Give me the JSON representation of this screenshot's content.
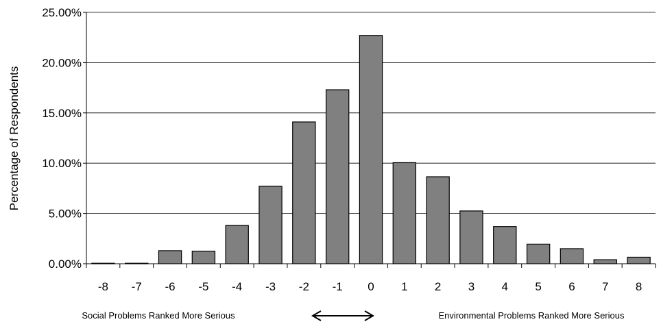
{
  "chart_data": {
    "type": "bar",
    "categories": [
      "-8",
      "-7",
      "-6",
      "-5",
      "-4",
      "-3",
      "-2",
      "-1",
      "0",
      "1",
      "2",
      "3",
      "4",
      "5",
      "6",
      "7",
      "8"
    ],
    "values": [
      0.05,
      0.05,
      1.3,
      1.25,
      3.8,
      7.7,
      14.1,
      17.3,
      22.7,
      10.05,
      8.65,
      5.25,
      3.7,
      1.95,
      1.5,
      0.4,
      0.65
    ],
    "value_format": "percent",
    "ylabel": "Percentage of Respondents",
    "ylim": [
      0,
      25
    ],
    "yticks": [
      "0.00%",
      "5.00%",
      "10.00%",
      "15.00%",
      "20.00%",
      "25.00%"
    ],
    "grid": true,
    "bar_color": "#808080",
    "annotations": {
      "left": "Social Problems Ranked More Serious",
      "right": "Environmental Problems Ranked More Serious",
      "arrow": "double-headed"
    }
  }
}
